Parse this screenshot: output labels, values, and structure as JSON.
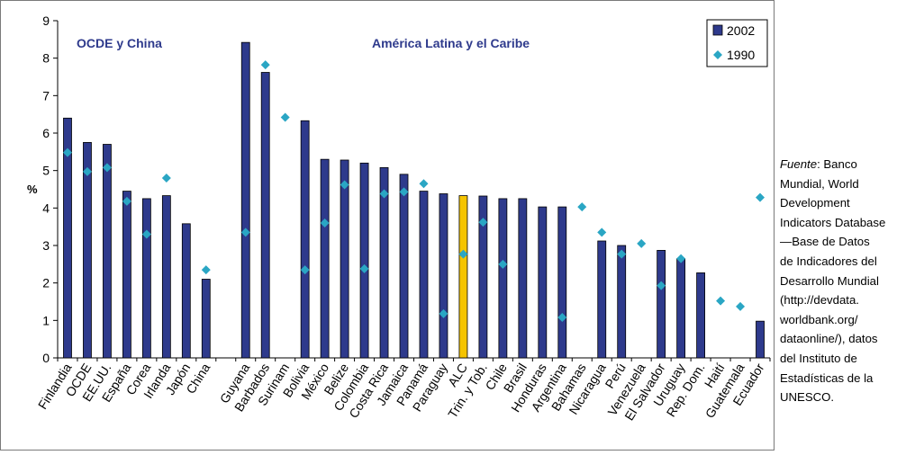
{
  "chart_data": {
    "type": "bar",
    "ylabel": "%",
    "ylim": [
      0,
      9
    ],
    "yticks": [
      0,
      1,
      2,
      3,
      4,
      5,
      6,
      7,
      8,
      9
    ],
    "grid": false,
    "legend_position": "top-right",
    "group_labels": [
      "OCDE y China",
      "América Latina y el Caribe"
    ],
    "categories": [
      "Finlandia",
      "OCDE",
      "EE.UU.",
      "España",
      "Corea",
      "Irlanda",
      "Japón",
      "China",
      "",
      "Guyana",
      "Barbados",
      "Surinam",
      "Bolivia",
      "México",
      "Belize",
      "Colombia",
      "Costa Rica",
      "Jamaica",
      "Panamá",
      "Paraguay",
      "ALC",
      "Trin. y Tob.",
      "Chile",
      "Brasil",
      "Honduras",
      "Argentina",
      "Bahamas",
      "Nicaragua",
      "Perú",
      "Venezuela",
      "El Salvador",
      "Uruguay",
      "Rep. Dom.",
      "Haití",
      "Guatemala",
      "Ecuador"
    ],
    "highlight_category": "ALC",
    "series": [
      {
        "name": "2002",
        "type": "bar",
        "color": "#2e3a8c",
        "highlight_color": "#f5c400",
        "values": [
          6.4,
          5.75,
          5.7,
          4.45,
          4.25,
          4.33,
          3.58,
          2.1,
          null,
          8.42,
          7.62,
          null,
          6.33,
          5.3,
          5.28,
          5.2,
          5.08,
          4.9,
          4.45,
          4.38,
          4.33,
          4.32,
          4.25,
          4.25,
          4.03,
          4.03,
          null,
          3.12,
          3.0,
          null,
          2.87,
          2.65,
          2.27,
          null,
          null,
          0.98
        ]
      },
      {
        "name": "1990",
        "type": "marker",
        "color": "#2aa6c4",
        "values": [
          5.48,
          4.97,
          5.08,
          4.18,
          3.3,
          4.8,
          null,
          2.35,
          null,
          3.35,
          7.82,
          6.42,
          2.35,
          3.6,
          4.62,
          2.38,
          4.38,
          4.43,
          4.65,
          1.18,
          2.77,
          3.62,
          2.5,
          null,
          null,
          1.08,
          4.03,
          3.35,
          2.77,
          3.05,
          1.93,
          2.65,
          null,
          1.52,
          1.37,
          4.28
        ]
      }
    ]
  },
  "source_note": {
    "fuente": "Fuente",
    "text": ": Banco\nMundial, World\nDevelopment\nIndicators Database\n—Base de Datos\nde Indicadores del\nDesarrollo Mundial\n(http://devdata.\nworldbank.org/\ndataonline/), datos\ndel Instituto de\nEstadísticas de la\nUNESCO."
  }
}
